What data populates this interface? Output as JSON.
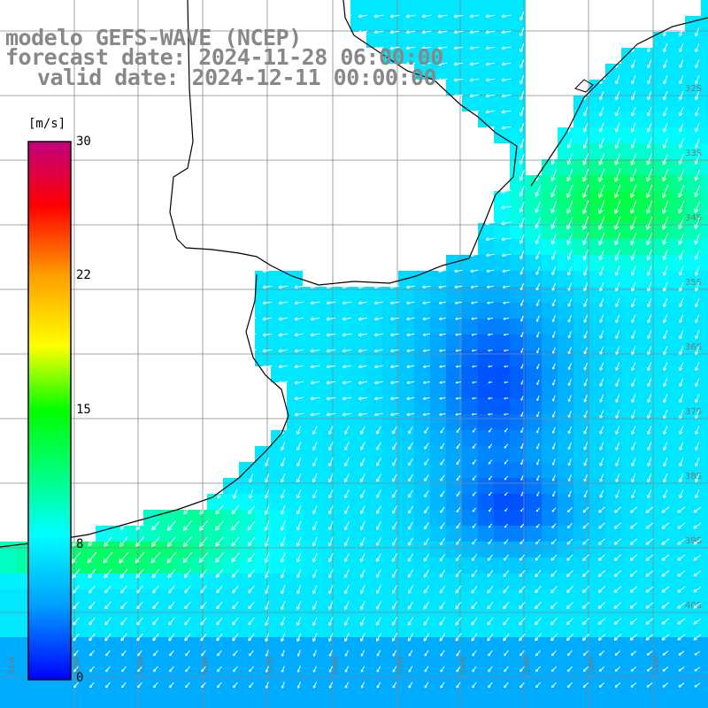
{
  "title": {
    "line1": "modelo GEFS-WAVE (NCEP)",
    "line2": "forecast date: 2024-11-28 06:00:00",
    "line3": "valid date: 2024-12-11 00:00:00"
  },
  "colorbar": {
    "unit": "[m/s]",
    "min": 0,
    "max": 30,
    "ticks": [
      "30",
      "22",
      "15",
      "8",
      "0"
    ],
    "tick_values": [
      30,
      22,
      15,
      8,
      0
    ],
    "colors": [
      "#0000ff",
      "#00a0ff",
      "#00ffff",
      "#00ff00",
      "#ffff00",
      "#ffa000",
      "#ff0000",
      "#c00080"
    ]
  },
  "map": {
    "lat_labels": [
      "32S",
      "33S",
      "34S",
      "35S",
      "36S",
      "37S",
      "38S",
      "39S",
      "40S"
    ],
    "lon_labels": [
      "61W",
      "60W",
      "59W",
      "58W",
      "57W",
      "56W",
      "55W",
      "54W",
      "53W",
      "52W",
      "51W"
    ],
    "land_color": "#ffffff",
    "grid_color": "#888888"
  }
}
